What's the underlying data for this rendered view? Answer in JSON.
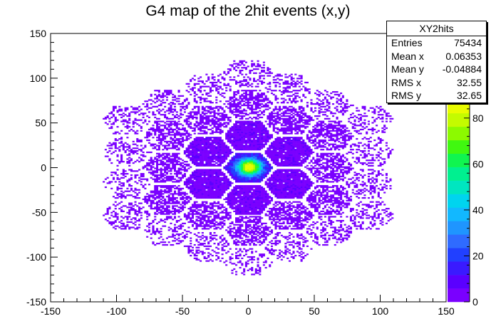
{
  "chart_data": {
    "type": "heatmap",
    "title": "G4 map of the 2hit events (x,y)",
    "xlabel": "",
    "ylabel": "",
    "xlim": [
      -150,
      150
    ],
    "ylim": [
      -150,
      150
    ],
    "x_ticks": [
      -150,
      -100,
      -50,
      0,
      50,
      100,
      150
    ],
    "y_ticks": [
      -150,
      -100,
      -50,
      0,
      50,
      100,
      150
    ],
    "z_range": [
      0,
      88
    ],
    "z_ticks": [
      0,
      20,
      40,
      60,
      80
    ],
    "palette": [
      "#7a00ff",
      "#5a00ff",
      "#3a1aff",
      "#2140ff",
      "#2f6bff",
      "#1f95ff",
      "#12b8ff",
      "#00d4ef",
      "#00e6c0",
      "#00f090",
      "#10f550",
      "#40f810",
      "#8cfa00",
      "#c4fb00",
      "#eafc00"
    ],
    "grid": false,
    "legend": "none",
    "stats": {
      "name": "XY2hits",
      "rows": [
        {
          "label": "Entries",
          "value": "75434"
        },
        {
          "label": "Mean x",
          "value": "0.06353"
        },
        {
          "label": "Mean y",
          "value": "-0.04884"
        },
        {
          "label": "RMS x",
          "value": "32.55"
        },
        {
          "label": "RMS y",
          "value": "32.65"
        }
      ]
    }
  }
}
